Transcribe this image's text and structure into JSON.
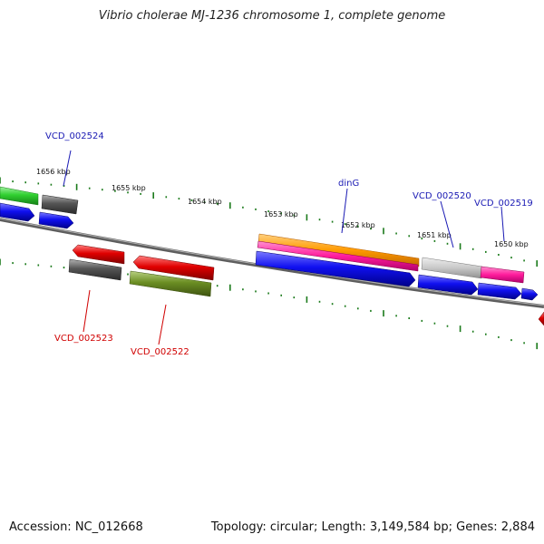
{
  "title": "Vibrio cholerae MJ-1236 chromosome 1, complete genome",
  "footer": {
    "accession": "Accession: NC_012668",
    "summary": "Topology: circular; Length: 3,149,584 bp; Genes: 2,884"
  },
  "ticks": [
    "1656 kbp",
    "1655 kbp",
    "1654 kbp",
    "1653 kbp",
    "1652 kbp",
    "1651 kbp",
    "1650 kbp"
  ],
  "gene_labels": [
    "VCD_002524",
    "dinG",
    "VCD_002520",
    "VCD_002519",
    "VCD_002523",
    "VCD_002522"
  ],
  "colors": {
    "blue": "#1010f0",
    "green": "#30d030",
    "grey": "#505050",
    "red": "#e00000",
    "olive": "#6b8e23",
    "orange": "#ff9a00",
    "pink": "#ff1c9c",
    "lightgrey": "#c8c8c8",
    "tick": "#1a7a1a",
    "backbone": "#7a7a7a"
  }
}
